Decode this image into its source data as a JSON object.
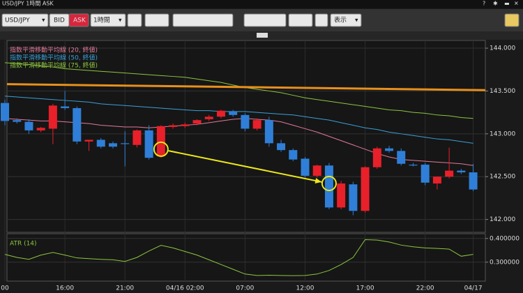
{
  "window_title": "USD/JPY 1時間 ASK",
  "toolbar": {
    "symbol": "USD/JPY",
    "bid": "BID",
    "ask": "ASK",
    "interval": "1時間",
    "display": "表示"
  },
  "chart_data": [
    {
      "type": "candlestick",
      "categories": [
        "00",
        null,
        null,
        null,
        null,
        "16:00",
        null,
        null,
        null,
        null,
        "21:00",
        null,
        null,
        null,
        null,
        "04/16 02:00",
        null,
        null,
        null,
        null,
        "07:00",
        null,
        null,
        null,
        null,
        "12:00",
        null,
        null,
        null,
        null,
        "17:00",
        null,
        null,
        null,
        null,
        "22:00",
        null,
        null,
        null,
        "04/17"
      ],
      "open": [
        143.36,
        143.16,
        143.14,
        143.04,
        143.06,
        143.32,
        143.3,
        142.91,
        142.93,
        142.89,
        142.89,
        142.87,
        143.04,
        142.74,
        143.08,
        143.09,
        143.12,
        143.17,
        143.2,
        143.26,
        143.22,
        143.06,
        143.16,
        142.89,
        142.81,
        142.71,
        142.51,
        142.63,
        142.14,
        142.41,
        142.1,
        142.61,
        142.83,
        142.8,
        142.64,
        142.64,
        142.42,
        142.5,
        142.57,
        142.55
      ],
      "high": [
        143.4,
        143.18,
        143.17,
        143.08,
        143.35,
        143.5,
        143.32,
        142.93,
        142.95,
        142.91,
        143.03,
        143.05,
        143.1,
        143.1,
        143.12,
        143.13,
        143.17,
        143.22,
        143.28,
        143.28,
        143.24,
        143.18,
        143.2,
        142.93,
        142.83,
        142.73,
        142.64,
        142.66,
        142.45,
        142.44,
        142.62,
        142.85,
        142.86,
        142.83,
        142.66,
        142.66,
        142.5,
        142.84,
        142.59,
        142.65
      ],
      "low": [
        143.1,
        143.12,
        143.0,
        143.02,
        142.88,
        143.28,
        142.88,
        142.8,
        142.83,
        142.83,
        142.62,
        142.84,
        142.7,
        142.72,
        143.06,
        143.07,
        143.1,
        143.15,
        143.18,
        143.2,
        143.03,
        143.04,
        142.85,
        142.79,
        142.68,
        142.49,
        142.49,
        142.12,
        142.12,
        142.05,
        142.08,
        142.59,
        142.78,
        142.63,
        142.62,
        142.4,
        142.35,
        142.48,
        142.53,
        142.33
      ],
      "close": [
        143.15,
        143.14,
        143.04,
        143.07,
        143.33,
        143.3,
        142.91,
        142.93,
        142.85,
        142.85,
        142.88,
        143.04,
        142.72,
        143.09,
        143.1,
        143.11,
        143.16,
        143.2,
        143.27,
        143.22,
        143.06,
        143.16,
        142.89,
        142.81,
        142.7,
        142.51,
        142.63,
        142.14,
        142.42,
        142.1,
        142.61,
        142.83,
        142.8,
        142.65,
        142.63,
        142.43,
        142.5,
        142.57,
        142.55,
        142.35
      ],
      "up_color": "#e8202a",
      "down_color": "#2f7fd8",
      "series": [
        {
          "name": "指数平滑移動平均線 (20, 終値)",
          "color": "#e07a9a",
          "values": [
            143.18,
            143.17,
            143.16,
            143.15,
            143.15,
            143.14,
            143.13,
            143.12,
            143.1,
            143.09,
            143.08,
            143.08,
            143.07,
            143.08,
            143.09,
            143.1,
            143.11,
            143.13,
            143.15,
            143.17,
            143.18,
            143.17,
            143.16,
            143.14,
            143.1,
            143.06,
            143.02,
            142.97,
            142.92,
            142.87,
            142.82,
            142.77,
            142.73,
            142.7,
            142.69,
            142.68,
            142.67,
            142.66,
            142.65,
            142.63
          ]
        },
        {
          "name": "指数平滑移動平均線 (50, 終値)",
          "color": "#3aa0d8",
          "values": [
            143.44,
            143.43,
            143.42,
            143.41,
            143.4,
            143.39,
            143.38,
            143.37,
            143.35,
            143.34,
            143.33,
            143.32,
            143.31,
            143.3,
            143.29,
            143.28,
            143.27,
            143.27,
            143.26,
            143.26,
            143.26,
            143.25,
            143.24,
            143.23,
            143.22,
            143.2,
            143.18,
            143.16,
            143.13,
            143.1,
            143.07,
            143.05,
            143.02,
            143.0,
            142.98,
            142.96,
            142.94,
            142.93,
            142.91,
            142.89
          ]
        },
        {
          "name": "指数平滑移動平均線 (75, 終値)",
          "color": "#8cc63f",
          "values": [
            143.83,
            143.82,
            143.81,
            143.79,
            143.78,
            143.76,
            143.75,
            143.74,
            143.73,
            143.72,
            143.71,
            143.7,
            143.69,
            143.68,
            143.67,
            143.66,
            143.64,
            143.62,
            143.6,
            143.57,
            143.54,
            143.52,
            143.5,
            143.48,
            143.45,
            143.42,
            143.4,
            143.38,
            143.36,
            143.34,
            143.32,
            143.3,
            143.28,
            143.27,
            143.25,
            143.24,
            143.22,
            143.21,
            143.19,
            143.18
          ]
        }
      ],
      "trend_line": {
        "values": [
          143.58,
          143.51
        ],
        "color": "#e8901c"
      },
      "arrow": {
        "from": [
          13,
          142.82
        ],
        "to": [
          27,
          142.42
        ],
        "color": "#ece81a"
      },
      "ylim": [
        141.85,
        144.09
      ],
      "yticks": [
        {
          "value": 142,
          "label": "142.000"
        },
        {
          "value": 142.5,
          "label": "142.500"
        },
        {
          "value": 143,
          "label": "143.000"
        },
        {
          "value": 143.5,
          "label": "143.500"
        },
        {
          "value": 144,
          "label": "144.000"
        }
      ],
      "grid": true
    },
    {
      "type": "line",
      "title": "ATR (14)",
      "color": "#8cc63f",
      "values": [
        0.333,
        0.32,
        0.312,
        0.33,
        0.341,
        0.33,
        0.318,
        0.315,
        0.312,
        0.31,
        0.303,
        0.32,
        0.347,
        0.371,
        0.36,
        0.345,
        0.33,
        0.31,
        0.29,
        0.27,
        0.25,
        0.244,
        0.245,
        0.244,
        0.243,
        0.244,
        0.25,
        0.265,
        0.29,
        0.32,
        0.395,
        0.393,
        0.385,
        0.372,
        0.365,
        0.36,
        0.358,
        0.355,
        0.325,
        0.333
      ],
      "ylim": [
        0.22,
        0.42
      ],
      "yticks": [
        {
          "value": 0.3,
          "label": "0.300000"
        },
        {
          "value": 0.4,
          "label": "0.400000"
        }
      ],
      "grid": true
    }
  ]
}
